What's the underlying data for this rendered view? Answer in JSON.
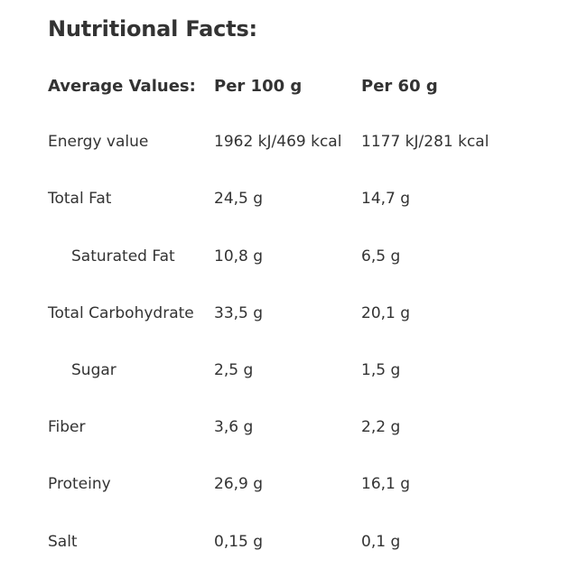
{
  "title": "Nutritional Facts:",
  "header": {
    "label": "Average Values:",
    "per_100": "Per 100 g",
    "per_60": "Per 60 g"
  },
  "rows": [
    {
      "label": "Energy value",
      "per_100": "1962 kJ/469 kcal",
      "per_60": "1177 kJ/281 kcal",
      "indent": false
    },
    {
      "label": "Total Fat",
      "per_100": "24,5 g",
      "per_60": "14,7 g",
      "indent": false
    },
    {
      "label": "Saturated Fat",
      "per_100": "10,8 g",
      "per_60": "6,5 g",
      "indent": true
    },
    {
      "label": "Total Carbohydrate",
      "per_100": "33,5 g",
      "per_60": "20,1 g",
      "indent": false
    },
    {
      "label": "Sugar",
      "per_100": "2,5 g",
      "per_60": "1,5 g",
      "indent": true
    },
    {
      "label": "Fiber",
      "per_100": "3,6 g",
      "per_60": "2,2 g",
      "indent": false
    },
    {
      "label": "Proteiny",
      "per_100": "26,9 g",
      "per_60": "16,1 g",
      "indent": false
    },
    {
      "label": "Salt",
      "per_100": "0,15 g",
      "per_60": "0,1 g",
      "indent": false
    }
  ]
}
